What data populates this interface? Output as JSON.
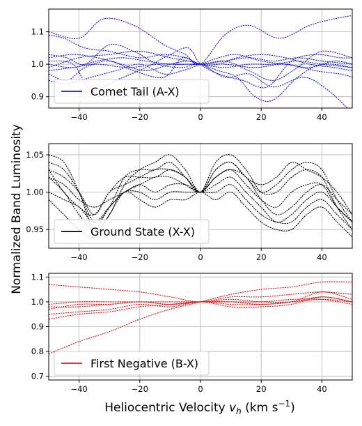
{
  "figure": {
    "xlabel_main": "Heliocentric Velocity ",
    "xlabel_var": "v",
    "xlabel_sub": "h",
    "xlabel_unit": " (km s",
    "xlabel_exp": "−1",
    "xlabel_end": ")",
    "ylabel": "Normalized Band Luminosity"
  },
  "chart_data": [
    {
      "type": "line",
      "legend": "Comet Tail (A-X)",
      "legend_position": "lower-left",
      "color": "#1c1ccc",
      "grid": true,
      "xlim": [
        -50,
        50
      ],
      "ylim": [
        0.865,
        1.17
      ],
      "xticks": [
        -40,
        -20,
        0,
        20,
        40
      ],
      "xtick_labels": [
        "−40",
        "−20",
        "0",
        "20",
        "40"
      ],
      "yticks": [
        0.9,
        1.0,
        1.1
      ],
      "ytick_labels": [
        "0.9",
        "1.0",
        "1.1"
      ],
      "series": [
        {
          "x": [
            -50,
            -40,
            -32,
            -22,
            -12,
            -5,
            0,
            8,
            16,
            26,
            36,
            44,
            50
          ],
          "y": [
            1.1,
            1.08,
            1.14,
            1.12,
            1.06,
            1.03,
            1.0,
            1.09,
            1.12,
            1.08,
            1.12,
            1.14,
            1.15
          ]
        },
        {
          "x": [
            -50,
            -45,
            -38,
            -30,
            -20,
            -12,
            -5,
            0,
            6,
            12,
            20,
            28,
            36,
            44,
            50
          ],
          "y": [
            1.09,
            1.08,
            1.05,
            1.04,
            1.02,
            1.03,
            1.02,
            1.0,
            1.0,
            1.02,
            1.03,
            1.02,
            1.0,
            0.99,
            0.98
          ]
        },
        {
          "x": [
            -50,
            -44,
            -38,
            -30,
            -22,
            -14,
            -6,
            0,
            8,
            16,
            24,
            34,
            42,
            50
          ],
          "y": [
            1.03,
            1.02,
            1.0,
            1.06,
            1.04,
            1.0,
            0.99,
            1.0,
            0.96,
            0.97,
            0.93,
            0.96,
            0.92,
            0.85
          ]
        },
        {
          "x": [
            -50,
            -44,
            -38,
            -30,
            -22,
            -12,
            -6,
            0,
            8,
            16,
            24,
            32,
            40,
            50
          ],
          "y": [
            0.97,
            0.95,
            0.99,
            1.01,
            0.98,
            0.96,
            1.02,
            1.0,
            1.01,
            0.98,
            0.95,
            0.99,
            1.04,
            1.02
          ]
        },
        {
          "x": [
            -50,
            -42,
            -36,
            -28,
            -18,
            -10,
            -4,
            0,
            6,
            14,
            22,
            30,
            38,
            46,
            50
          ],
          "y": [
            1.01,
            1.0,
            0.92,
            0.95,
            0.99,
            1.03,
            1.05,
            1.0,
            0.97,
            0.95,
            0.93,
            1.01,
            1.03,
            1.02,
            1.02
          ]
        },
        {
          "x": [
            -50,
            -44,
            -36,
            -28,
            -20,
            -12,
            -6,
            0,
            6,
            12,
            20,
            28,
            36,
            44,
            50
          ],
          "y": [
            0.95,
            0.94,
            0.96,
            0.98,
            1.0,
            0.97,
            0.98,
            1.0,
            1.02,
            1.03,
            1.01,
            1.0,
            0.99,
            1.01,
            1.0
          ]
        },
        {
          "x": [
            -50,
            -42,
            -34,
            -26,
            -18,
            -10,
            -4,
            0,
            6,
            12,
            18,
            24,
            32,
            40,
            50
          ],
          "y": [
            1.02,
            1.03,
            1.02,
            1.0,
            0.98,
            1.0,
            1.01,
            1.0,
            0.98,
            0.96,
            0.9,
            0.89,
            0.96,
            1.0,
            0.99
          ]
        },
        {
          "x": [
            -50,
            -42,
            -34,
            -26,
            -18,
            -10,
            -4,
            0,
            8,
            16,
            24,
            32,
            40,
            50
          ],
          "y": [
            1.0,
            0.99,
            1.01,
            1.02,
            1.01,
            1.0,
            1.0,
            1.0,
            1.01,
            1.02,
            1.01,
            1.02,
            1.01,
            1.0
          ]
        },
        {
          "x": [
            -50,
            -40,
            -30,
            -20,
            -10,
            -4,
            0,
            8,
            16,
            24,
            32,
            40,
            50
          ],
          "y": [
            0.99,
            1.02,
            1.03,
            1.04,
            1.02,
            1.01,
            1.0,
            0.99,
            1.0,
            1.0,
            1.01,
            1.0,
            0.99
          ]
        },
        {
          "x": [
            -50,
            -42,
            -34,
            -24,
            -14,
            -6,
            0,
            8,
            18,
            28,
            38,
            46,
            50
          ],
          "y": [
            0.98,
            0.99,
            1.0,
            0.99,
            1.0,
            1.0,
            1.0,
            1.0,
            0.99,
            1.0,
            0.98,
            0.97,
            0.96
          ]
        }
      ]
    },
    {
      "type": "line",
      "legend": "Ground State (X-X)",
      "legend_position": "lower-left",
      "color": "#000000",
      "grid": true,
      "xlim": [
        -50,
        50
      ],
      "ylim": [
        0.925,
        1.065
      ],
      "xticks": [
        -40,
        -20,
        0,
        20,
        40
      ],
      "xtick_labels": [
        "−40",
        "−20",
        "0",
        "20",
        "40"
      ],
      "yticks": [
        0.95,
        1.0,
        1.05
      ],
      "ytick_labels": [
        "0.95",
        "1.00",
        "1.05"
      ],
      "series": [
        {
          "x": [
            -50,
            -45,
            -40,
            -35,
            -30,
            -25,
            -20,
            -15,
            -10,
            -5,
            0,
            5,
            10,
            15,
            20,
            25,
            30,
            35,
            40,
            45,
            50
          ],
          "y": [
            1.05,
            1.04,
            1.0,
            0.95,
            0.97,
            1.01,
            1.03,
            1.04,
            1.05,
            1.03,
            1.0,
            1.03,
            1.04,
            1.02,
            1.0,
            1.01,
            1.03,
            1.04,
            1.03,
            0.99,
            0.96
          ]
        },
        {
          "x": [
            -50,
            -45,
            -40,
            -35,
            -30,
            -25,
            -20,
            -15,
            -10,
            -5,
            0,
            5,
            10,
            15,
            20,
            25,
            30,
            35,
            40,
            45,
            50
          ],
          "y": [
            1.04,
            1.03,
            1.0,
            0.96,
            0.98,
            1.02,
            1.03,
            1.03,
            1.04,
            1.02,
            1.0,
            1.04,
            1.05,
            1.03,
            1.0,
            1.0,
            1.02,
            1.03,
            1.02,
            0.98,
            0.95
          ]
        },
        {
          "x": [
            -50,
            -45,
            -40,
            -35,
            -30,
            -25,
            -20,
            -15,
            -10,
            -5,
            0,
            5,
            10,
            15,
            20,
            25,
            30,
            35,
            40,
            45,
            50
          ],
          "y": [
            1.03,
            1.0,
            0.98,
            0.97,
            1.0,
            1.02,
            1.02,
            1.02,
            1.03,
            1.02,
            1.0,
            1.02,
            1.03,
            1.02,
            0.99,
            0.97,
            0.98,
            1.0,
            1.01,
            0.99,
            0.97
          ]
        },
        {
          "x": [
            -50,
            -45,
            -40,
            -35,
            -30,
            -25,
            -20,
            -15,
            -10,
            -5,
            0,
            5,
            10,
            15,
            20,
            25,
            30,
            35,
            40,
            45,
            50
          ],
          "y": [
            1.02,
            1.01,
            0.99,
            0.98,
            0.99,
            1.0,
            1.01,
            1.0,
            1.01,
            1.01,
            1.0,
            1.01,
            1.02,
            1.0,
            0.98,
            0.96,
            0.97,
            0.99,
            1.0,
            0.98,
            0.96
          ]
        },
        {
          "x": [
            -50,
            -45,
            -40,
            -35,
            -30,
            -25,
            -20,
            -15,
            -10,
            -5,
            0,
            5,
            10,
            15,
            20,
            25,
            30,
            35,
            40,
            45,
            50
          ],
          "y": [
            1.0,
            0.99,
            0.98,
            0.96,
            0.98,
            1.0,
            1.0,
            0.99,
            1.0,
            1.0,
            1.0,
            1.0,
            1.01,
            0.99,
            0.97,
            0.96,
            0.96,
            0.98,
            0.99,
            0.97,
            0.95
          ]
        },
        {
          "x": [
            -50,
            -45,
            -40,
            -35,
            -30,
            -25,
            -20,
            -15,
            -10,
            -5,
            0,
            5,
            10,
            15,
            20,
            25,
            30,
            35,
            40,
            45,
            50
          ],
          "y": [
            0.99,
            0.97,
            0.95,
            0.94,
            0.97,
            1.0,
            0.99,
            0.98,
            0.99,
            0.99,
            1.0,
            0.99,
            1.0,
            0.98,
            0.96,
            0.95,
            0.95,
            0.97,
            0.98,
            0.96,
            0.94
          ]
        },
        {
          "x": [
            -50,
            -45,
            -40,
            -35,
            -30,
            -25,
            -20,
            -15,
            -10,
            -5,
            0,
            5,
            10,
            15,
            20,
            25,
            30,
            35,
            40,
            45,
            50
          ],
          "y": [
            1.03,
            1.02,
            1.0,
            0.97,
            1.0,
            1.01,
            1.02,
            1.03,
            1.03,
            1.02,
            1.0,
            1.03,
            1.04,
            1.02,
            1.01,
            1.02,
            1.04,
            1.03,
            1.02,
            1.0,
            0.97
          ]
        },
        {
          "x": [
            -50,
            -45,
            -40,
            -35,
            -30,
            -25,
            -20,
            -15,
            -10,
            -5,
            0,
            5,
            10,
            15,
            20,
            25,
            30,
            35,
            40,
            45,
            50
          ],
          "y": [
            1.02,
            1.0,
            0.97,
            0.95,
            0.98,
            1.0,
            1.01,
            1.02,
            1.02,
            1.01,
            1.0,
            1.02,
            1.03,
            1.01,
            0.99,
            0.98,
            1.0,
            1.01,
            1.01,
            0.98,
            0.96
          ]
        }
      ]
    },
    {
      "type": "line",
      "legend": "First Negative (B-X)",
      "legend_position": "lower-left",
      "color": "#e01818",
      "grid": true,
      "xlim": [
        -50,
        50
      ],
      "ylim": [
        0.685,
        1.115
      ],
      "xticks": [
        -40,
        -20,
        0,
        20,
        40
      ],
      "xtick_labels": [
        "−40",
        "−20",
        "0",
        "20",
        "40"
      ],
      "yticks": [
        0.7,
        0.8,
        0.9,
        1.0,
        1.1
      ],
      "ytick_labels": [
        "0.7",
        "0.8",
        "0.9",
        "1.0",
        "1.1"
      ],
      "series": [
        {
          "x": [
            -50,
            -40,
            -30,
            -20,
            -10,
            0,
            10,
            20,
            30,
            40,
            50
          ],
          "y": [
            0.79,
            0.84,
            0.88,
            0.93,
            0.97,
            1.0,
            1.03,
            1.05,
            1.06,
            1.08,
            1.08
          ]
        },
        {
          "x": [
            -50,
            -40,
            -30,
            -20,
            -10,
            0,
            10,
            20,
            30,
            40,
            50
          ],
          "y": [
            1.07,
            1.06,
            1.05,
            1.04,
            1.02,
            1.0,
            1.02,
            1.02,
            1.03,
            1.04,
            1.03
          ]
        },
        {
          "x": [
            -50,
            -40,
            -30,
            -20,
            -10,
            0,
            10,
            20,
            30,
            40,
            50
          ],
          "y": [
            0.93,
            0.95,
            0.96,
            0.98,
            0.99,
            1.0,
            0.99,
            0.99,
            1.0,
            1.04,
            1.01
          ]
        },
        {
          "x": [
            -50,
            -40,
            -30,
            -20,
            -10,
            0,
            10,
            20,
            30,
            40,
            50
          ],
          "y": [
            0.95,
            0.96,
            0.97,
            0.99,
            0.98,
            1.0,
            0.98,
            0.98,
            0.99,
            1.02,
            1.0
          ]
        },
        {
          "x": [
            -50,
            -40,
            -30,
            -20,
            -10,
            0,
            10,
            20,
            30,
            40,
            50
          ],
          "y": [
            0.98,
            0.98,
            0.99,
            1.0,
            0.99,
            1.0,
            1.0,
            0.99,
            1.0,
            1.01,
            1.0
          ]
        },
        {
          "x": [
            -50,
            -40,
            -30,
            -20,
            -10,
            0,
            10,
            20,
            30,
            40,
            50
          ],
          "y": [
            0.99,
            1.0,
            1.0,
            1.0,
            1.0,
            1.0,
            1.0,
            1.0,
            1.01,
            1.01,
            0.99
          ]
        },
        {
          "x": [
            -50,
            -40,
            -30,
            -20,
            -10,
            0,
            10,
            20,
            30,
            40,
            50
          ],
          "y": [
            0.97,
            0.99,
            0.99,
            1.0,
            0.99,
            1.0,
            1.01,
            1.0,
            1.0,
            1.02,
            1.0
          ]
        }
      ]
    }
  ]
}
